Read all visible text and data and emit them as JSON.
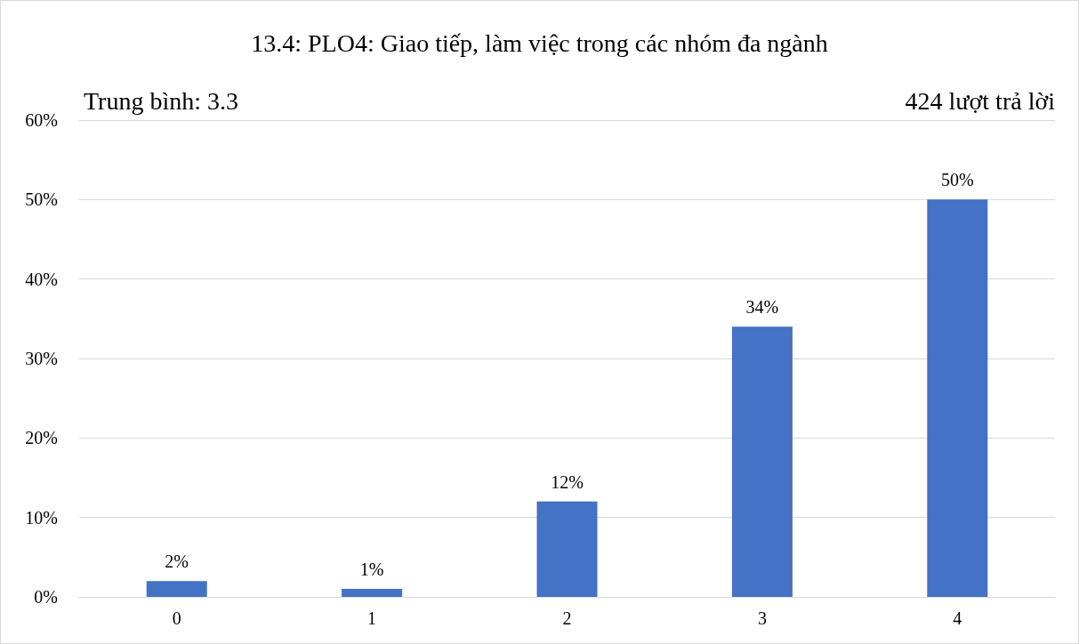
{
  "chart_data": {
    "type": "bar",
    "title": "13.4: PLO4: Giao tiếp, làm việc trong các nhóm đa ngành",
    "annotations": [
      "Trung bình: 3.3",
      "424 lượt trả lời"
    ],
    "categories": [
      "0",
      "1",
      "2",
      "3",
      "4"
    ],
    "values": [
      2,
      1,
      12,
      34,
      50
    ],
    "value_labels": [
      "2%",
      "1%",
      "12%",
      "34%",
      "50%"
    ],
    "color": "#4472c4",
    "ylim": [
      0,
      60
    ],
    "yticks": [
      {
        "value": 0,
        "label": "0%"
      },
      {
        "value": 10,
        "label": "10%"
      },
      {
        "value": 20,
        "label": "20%"
      },
      {
        "value": 30,
        "label": "30%"
      },
      {
        "value": 40,
        "label": "40%"
      },
      {
        "value": 50,
        "label": "50%"
      },
      {
        "value": 60,
        "label": "60%"
      }
    ],
    "grid": "y"
  }
}
